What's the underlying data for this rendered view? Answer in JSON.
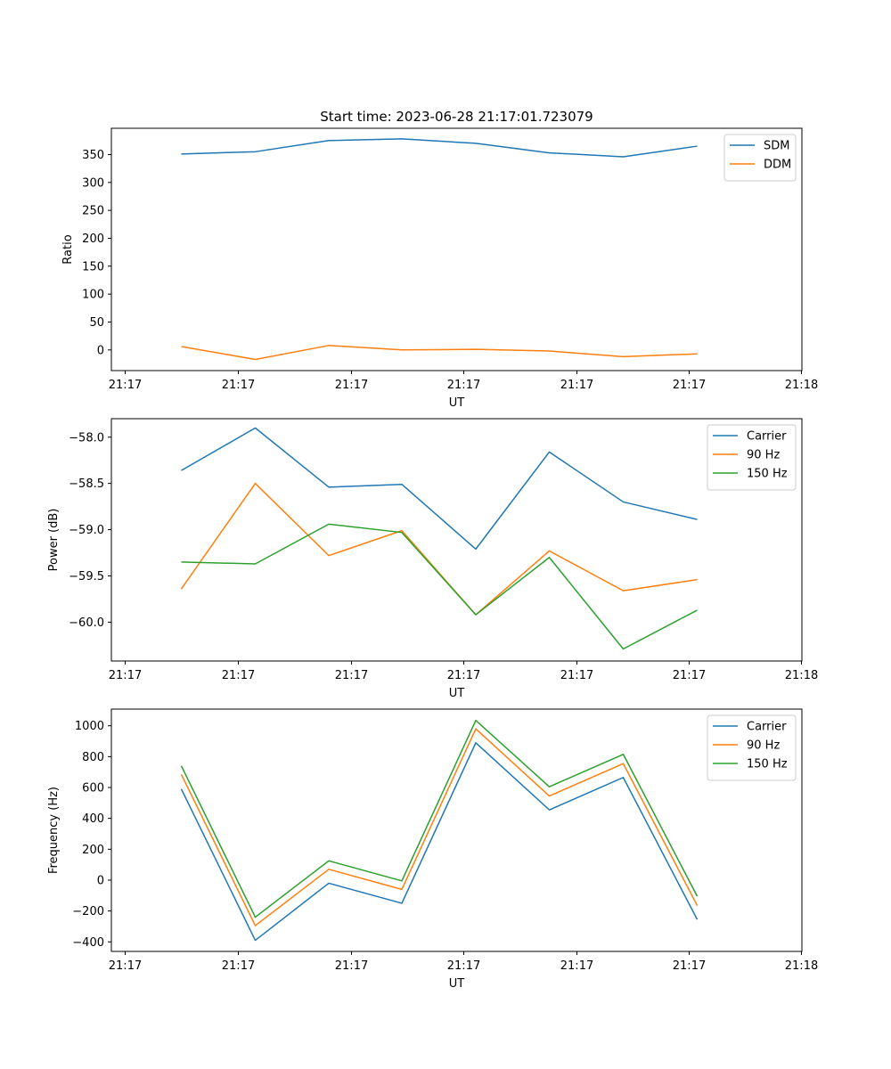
{
  "title": "Start time: 2023-06-28 21:17:01.723079",
  "colors": [
    "#1f77b4",
    "#ff7f0e",
    "#2ca02c"
  ],
  "chart_data": [
    {
      "type": "line",
      "xlabel": "UT",
      "ylabel": "Ratio",
      "x_tick_labels": [
        "21:17",
        "21:17",
        "21:17",
        "21:17",
        "21:17",
        "21:17",
        "21:18"
      ],
      "y_ticks": [
        0,
        50,
        100,
        150,
        200,
        250,
        300,
        350
      ],
      "ylim": [
        -37,
        397
      ],
      "legend_position": "top-right",
      "grid": false,
      "series": [
        {
          "name": "SDM",
          "values": [
            351,
            355,
            375,
            378,
            370,
            353,
            346,
            365
          ]
        },
        {
          "name": "DDM",
          "values": [
            6,
            -17,
            8,
            0,
            1,
            -2,
            -12,
            -7
          ]
        }
      ]
    },
    {
      "type": "line",
      "xlabel": "UT",
      "ylabel": "Power (dB)",
      "x_tick_labels": [
        "21:17",
        "21:17",
        "21:17",
        "21:17",
        "21:17",
        "21:17",
        "21:18"
      ],
      "y_ticks": [
        -60.0,
        -59.5,
        -59.0,
        -58.5,
        -58.0
      ],
      "y_tick_labels": [
        "−60.0",
        "−59.5",
        "−59.0",
        "−58.5",
        "−58.0"
      ],
      "ylim": [
        -60.42,
        -57.8
      ],
      "legend_position": "top-right",
      "grid": false,
      "series": [
        {
          "name": "Carrier",
          "values": [
            -58.36,
            -57.9,
            -58.54,
            -58.51,
            -59.21,
            -58.16,
            -58.7,
            -58.89
          ]
        },
        {
          "name": "90 Hz",
          "values": [
            -59.64,
            -58.5,
            -59.28,
            -59.01,
            -59.92,
            -59.23,
            -59.66,
            -59.54
          ]
        },
        {
          "name": "150 Hz",
          "values": [
            -59.35,
            -59.37,
            -58.94,
            -59.03,
            -59.92,
            -59.3,
            -60.29,
            -59.87
          ]
        }
      ]
    },
    {
      "type": "line",
      "xlabel": "UT",
      "ylabel": "Frequency (Hz)",
      "x_tick_labels": [
        "21:17",
        "21:17",
        "21:17",
        "21:17",
        "21:17",
        "21:17",
        "21:18"
      ],
      "y_ticks": [
        -400,
        -200,
        0,
        200,
        400,
        600,
        800,
        1000
      ],
      "y_tick_labels": [
        "−400",
        "−200",
        "0",
        "200",
        "400",
        "600",
        "800",
        "1000"
      ],
      "ylim": [
        -462,
        1108
      ],
      "legend_position": "top-right",
      "grid": false,
      "series": [
        {
          "name": "Carrier",
          "values": [
            590,
            -390,
            -20,
            -150,
            890,
            455,
            665,
            -255
          ]
        },
        {
          "name": "90 Hz",
          "values": [
            685,
            -295,
            70,
            -60,
            980,
            545,
            755,
            -165
          ]
        },
        {
          "name": "150 Hz",
          "values": [
            740,
            -240,
            125,
            -5,
            1035,
            605,
            815,
            -105
          ]
        }
      ]
    }
  ]
}
